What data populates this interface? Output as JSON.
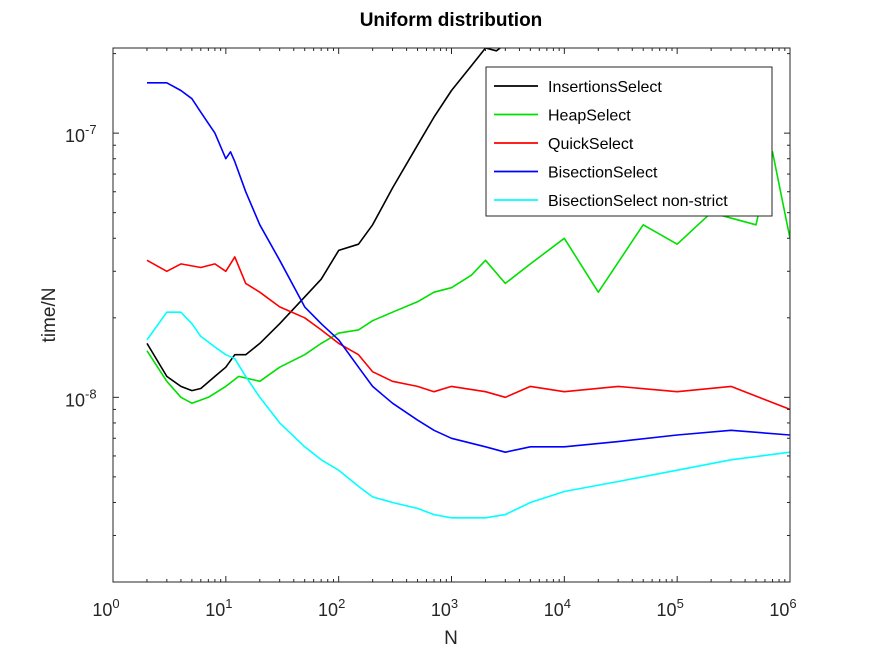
{
  "chart_data": {
    "type": "line",
    "title": "Uniform distribution",
    "xlabel": "N",
    "ylabel": "time/N",
    "xscale": "log",
    "yscale": "log",
    "xlim": [
      1,
      1000000
    ],
    "ylim": [
      2e-09,
      2.1e-07
    ],
    "x_ticks": [
      {
        "base": "10",
        "exp": "0",
        "value": 1
      },
      {
        "base": "10",
        "exp": "1",
        "value": 10
      },
      {
        "base": "10",
        "exp": "2",
        "value": 100
      },
      {
        "base": "10",
        "exp": "3",
        "value": 1000
      },
      {
        "base": "10",
        "exp": "4",
        "value": 10000
      },
      {
        "base": "10",
        "exp": "5",
        "value": 100000
      },
      {
        "base": "10",
        "exp": "6",
        "value": 1000000
      }
    ],
    "y_ticks": [
      {
        "base": "10",
        "exp": "-8",
        "value": 1e-08
      },
      {
        "base": "10",
        "exp": "-7",
        "value": 1e-07
      }
    ],
    "legend_position": "top-right",
    "grid": false,
    "series": [
      {
        "name": "InsertionsSelect",
        "color": "#000000",
        "x": [
          2,
          3,
          4,
          5,
          6,
          8,
          10,
          12,
          15,
          20,
          30,
          50,
          70,
          100,
          150,
          200,
          300,
          500,
          700,
          1000,
          1500,
          2000,
          2500,
          2700
        ],
        "y": [
          1.6e-08,
          1.2e-08,
          1.1e-08,
          1.06e-08,
          1.08e-08,
          1.2e-08,
          1.3e-08,
          1.45e-08,
          1.45e-08,
          1.6e-08,
          1.9e-08,
          2.4e-08,
          2.8e-08,
          3.6e-08,
          3.8e-08,
          4.5e-08,
          6.2e-08,
          9e-08,
          1.15e-07,
          1.45e-07,
          1.8e-07,
          2.1e-07,
          2.05e-07,
          2.1e-07
        ]
      },
      {
        "name": "HeapSelect",
        "color": "#00e000",
        "x": [
          2,
          3,
          4,
          5,
          7,
          10,
          13,
          20,
          30,
          50,
          70,
          100,
          150,
          200,
          300,
          500,
          700,
          1000,
          1500,
          2000,
          3000,
          5000,
          10000,
          20000,
          50000,
          100000,
          200000,
          500000,
          700000,
          1000000
        ],
        "y": [
          1.5e-08,
          1.15e-08,
          1e-08,
          9.5e-09,
          1e-08,
          1.1e-08,
          1.2e-08,
          1.15e-08,
          1.3e-08,
          1.45e-08,
          1.6e-08,
          1.75e-08,
          1.8e-08,
          1.95e-08,
          2.1e-08,
          2.3e-08,
          2.5e-08,
          2.6e-08,
          2.9e-08,
          3.3e-08,
          2.7e-08,
          3.2e-08,
          4e-08,
          2.5e-08,
          4.5e-08,
          3.8e-08,
          5e-08,
          4.5e-08,
          8.5e-08,
          4e-08
        ]
      },
      {
        "name": "QuickSelect",
        "color": "#ff0000",
        "x": [
          2,
          3,
          4,
          6,
          8,
          10,
          12,
          15,
          20,
          30,
          50,
          70,
          100,
          150,
          200,
          300,
          500,
          700,
          1000,
          2000,
          3000,
          5000,
          10000,
          30000,
          100000,
          300000,
          1000000
        ],
        "y": [
          3.3e-08,
          3e-08,
          3.2e-08,
          3.1e-08,
          3.2e-08,
          3e-08,
          3.4e-08,
          2.7e-08,
          2.5e-08,
          2.2e-08,
          2e-08,
          1.8e-08,
          1.6e-08,
          1.45e-08,
          1.25e-08,
          1.15e-08,
          1.1e-08,
          1.05e-08,
          1.1e-08,
          1.05e-08,
          1e-08,
          1.1e-08,
          1.05e-08,
          1.1e-08,
          1.05e-08,
          1.1e-08,
          9e-09
        ]
      },
      {
        "name": "BisectionSelect",
        "color": "#0000ff",
        "x": [
          2,
          3,
          4,
          5,
          6,
          8,
          10,
          11,
          12,
          15,
          20,
          30,
          50,
          70,
          100,
          150,
          200,
          300,
          500,
          700,
          1000,
          2000,
          3000,
          5000,
          10000,
          30000,
          100000,
          300000,
          1000000
        ],
        "y": [
          1.55e-07,
          1.55e-07,
          1.45e-07,
          1.35e-07,
          1.2e-07,
          1e-07,
          8e-08,
          8.5e-08,
          7.8e-08,
          6e-08,
          4.5e-08,
          3.3e-08,
          2.2e-08,
          1.9e-08,
          1.65e-08,
          1.3e-08,
          1.1e-08,
          9.5e-09,
          8.2e-09,
          7.5e-09,
          7e-09,
          6.5e-09,
          6.2e-09,
          6.5e-09,
          6.5e-09,
          6.8e-09,
          7.2e-09,
          7.5e-09,
          7.2e-09
        ]
      },
      {
        "name": "BisectionSelect non-strict",
        "color": "#00ffff",
        "x": [
          2,
          3,
          4,
          5,
          6,
          8,
          10,
          12,
          15,
          20,
          30,
          50,
          70,
          100,
          150,
          200,
          300,
          500,
          700,
          1000,
          2000,
          3000,
          5000,
          10000,
          30000,
          100000,
          300000,
          1000000
        ],
        "y": [
          1.65e-08,
          2.1e-08,
          2.1e-08,
          1.9e-08,
          1.7e-08,
          1.55e-08,
          1.45e-08,
          1.4e-08,
          1.2e-08,
          1e-08,
          8e-09,
          6.5e-09,
          5.8e-09,
          5.3e-09,
          4.6e-09,
          4.2e-09,
          4e-09,
          3.8e-09,
          3.6e-09,
          3.5e-09,
          3.5e-09,
          3.6e-09,
          4e-09,
          4.4e-09,
          4.8e-09,
          5.3e-09,
          5.8e-09,
          6.2e-09
        ]
      }
    ]
  }
}
